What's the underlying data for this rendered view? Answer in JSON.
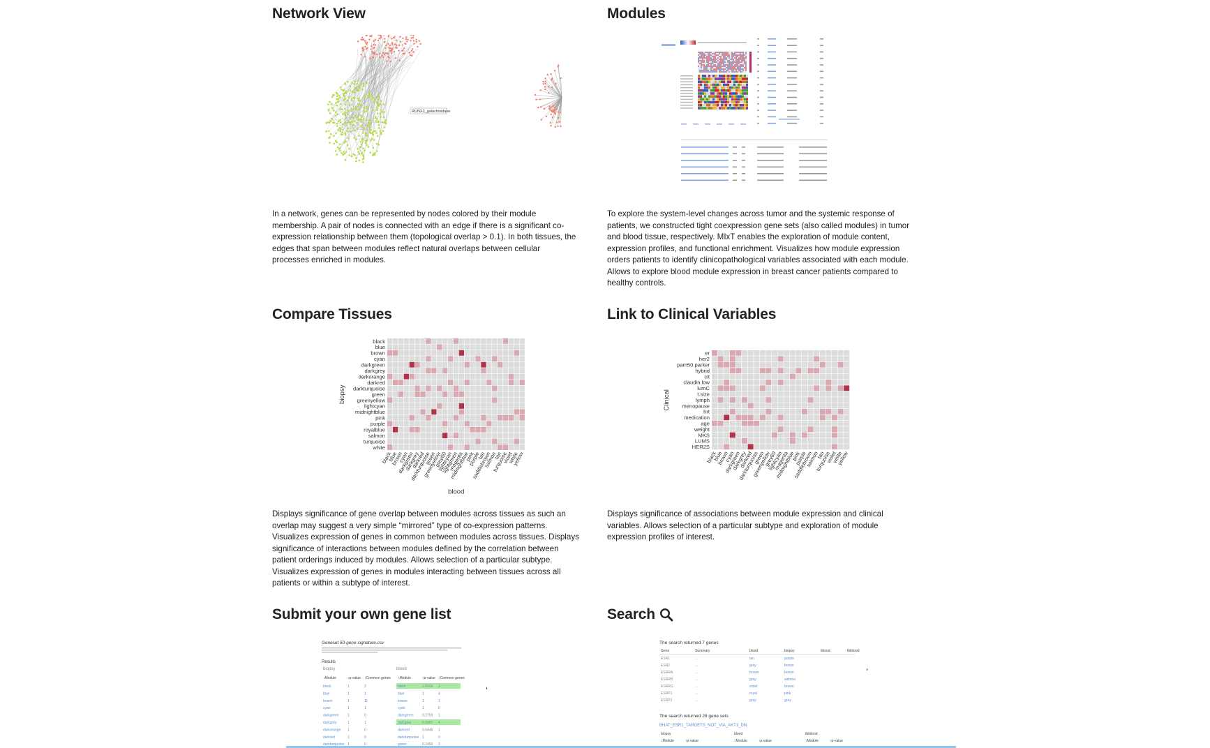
{
  "sections": {
    "network_view": {
      "title": "Network View",
      "node_label": "RUNX2_galactosidase",
      "description": "In a network, genes can be represented by nodes colored by their module membership. A pair of nodes is connected with an edge if there is a significant co-expression relationship between them (topological overlap > 0.1). In both tissues, the edges that span between modules reflect natural overlaps between cellular processes enriched in modules."
    },
    "modules": {
      "title": "Modules",
      "description": "To explore the system-level changes across tumor and the systemic response of patients, we constructed tight coexpression gene sets (also called modules) in tumor and blood tissue, respectively. MIxT enables the exploration of module content, expression profiles, and functional enrichment. Visualizes how module expression orders patients to identify clinicopathological variables associated with each module. Allows to explore blood module expression in breast cancer patients compared to healthy controls."
    },
    "compare_tissues": {
      "title": "Compare Tissues",
      "ylabel": "biopsy",
      "xlabel": "blood",
      "rows": [
        "black",
        "blue",
        "brown",
        "cyan",
        "darkgreen",
        "darkgrey",
        "darkorange",
        "darkred",
        "darkturquoise",
        "green",
        "greenyellow",
        "lightcyan",
        "midnightblue",
        "pink",
        "purple",
        "royalblue",
        "salmon",
        "turquoise",
        "white"
      ],
      "cols": [
        "black",
        "blue",
        "brown",
        "cyan",
        "darkgreen",
        "darkgrey",
        "darkred",
        "darkturquoise",
        "green",
        "greenyellow",
        "grey60",
        "lightcyan",
        "lightgreen",
        "magenta",
        "midnightblue",
        "pink",
        "purple",
        "tan",
        "saddlebrown",
        "salmon",
        "tan",
        "turquoise",
        "violet",
        "white",
        "yellow"
      ],
      "description": "Displays significance of gene overlap between modules across tissues as such an overlap may suggest a very simple “mirrored” type of co-expression patterns. Visualizes expression of genes in common between modules across tissues. Displays significance of interactions between modules defined by the correlation between patient orderings induced by modules. Allows selection of a particular subtype. Visualizes expression of genes in modules interacting between tissues across all patients or within a subtype of interest."
    },
    "clinical": {
      "title": "Link to Clinical Variables",
      "ylabel": "Clinical",
      "rows": [
        "er",
        "her2",
        "pam50.parker",
        "hybrid",
        "cit",
        "claudin.low",
        "lumC",
        "t.size",
        "lymph",
        "menopause",
        "hrt",
        "medication",
        "age",
        "weight",
        "MKS",
        "LUMS",
        "HER2S"
      ],
      "cols": [
        "black",
        "blue",
        "brown",
        "cyan",
        "darkgreen",
        "darkgrey",
        "darkred",
        "darkturquoise",
        "green",
        "greenyellow",
        "grey60",
        "lightcyan",
        "magenta",
        "midnightblue",
        "pink",
        "purple",
        "saddlebrown",
        "salmon",
        "tan",
        "turquoise",
        "violet",
        "white",
        "yellow"
      ],
      "description": "Displays significance of associations between module expression and clinical variables. Allows selection of a particular subtype and exploration of module expression profiles of interest."
    },
    "submit": {
      "title": "Submit your own gene list",
      "geneset_label": "Geneset",
      "geneset_file": "50-gene-signature.csv",
      "results_label": "Results",
      "biopsy_label": "biopsy",
      "blood_label": "blood",
      "headers": [
        "↕Module",
        "↕p-value",
        "↕Common genes"
      ],
      "rows": [
        {
          "b_mod": "black",
          "b_p": "1",
          "b_c": "2",
          "bl_mod": "black",
          "bl_p": "0.0004",
          "bl_c": "3",
          "hl": true
        },
        {
          "b_mod": "blue",
          "b_p": "1",
          "b_c": "1",
          "bl_mod": "blue",
          "bl_p": "1",
          "bl_c": "4",
          "hl": false
        },
        {
          "b_mod": "brown",
          "b_p": "1",
          "b_c": "11",
          "bl_mod": "brown",
          "bl_p": "1",
          "bl_c": "1",
          "hl": false
        },
        {
          "b_mod": "cyan",
          "b_p": "1",
          "b_c": "1",
          "bl_mod": "cyan",
          "bl_p": "1",
          "bl_c": "0",
          "hl": false
        },
        {
          "b_mod": "darkgreen",
          "b_p": "1",
          "b_c": "0",
          "bl_mod": "darkgreen",
          "bl_p": "0.2759",
          "bl_c": "1",
          "hl": false
        },
        {
          "b_mod": "darkgrey",
          "b_p": "1",
          "b_c": "1",
          "bl_mod": "darkgrey",
          "bl_p": "0.0007",
          "bl_c": "4",
          "hl": true
        },
        {
          "b_mod": "darkorange",
          "b_p": "1",
          "b_c": "0",
          "bl_mod": "darkred",
          "bl_p": "0.6446",
          "bl_c": "1",
          "hl": false
        },
        {
          "b_mod": "darkred",
          "b_p": "1",
          "b_c": "0",
          "bl_mod": "darkturquoise",
          "bl_p": "1",
          "bl_c": "0",
          "hl": false
        },
        {
          "b_mod": "darkturquoise",
          "b_p": "1",
          "b_c": "0",
          "bl_mod": "green",
          "bl_p": "0.2450",
          "bl_c": "2",
          "hl": false
        }
      ]
    },
    "search": {
      "title": "Search",
      "returned_genes": "The search returned 7 genes",
      "headers": [
        "Gene",
        "Summary",
        "blood",
        "biopsy",
        "tblood",
        "tbiblood"
      ],
      "rows": [
        {
          "gene": "ESR1",
          "summary": "...",
          "blood": "tan",
          "biopsy": "purple"
        },
        {
          "gene": "ESR2",
          "summary": "...",
          "blood": "grey",
          "biopsy": "brown"
        },
        {
          "gene": "ESRRA",
          "summary": "...",
          "blood": "brown",
          "biopsy": "brown"
        },
        {
          "gene": "ESRRB",
          "summary": "...",
          "blood": "grey",
          "biopsy": "salmon"
        },
        {
          "gene": "ESRRG",
          "summary": "...",
          "blood": "violet",
          "biopsy": "brown"
        },
        {
          "gene": "ESRP1",
          "summary": "...",
          "blood": "royal",
          "biopsy": "pink"
        },
        {
          "gene": "ESRP2",
          "summary": "...",
          "blood": "grey",
          "biopsy": "grey"
        }
      ],
      "returned_sets": "The search returned 28 gene sets",
      "set_link": "BHAT_ESR1_TARGETS_NOT_VIA_AKT1_DN",
      "set_cols": [
        "biopsy",
        "blood",
        "tbiblood"
      ],
      "set_headers": [
        "↕Module",
        "↕p-value",
        "↕Module",
        "↕p-value",
        "↕Module",
        "↕p-value"
      ]
    }
  },
  "icons": {
    "search": "search-icon"
  },
  "colors": {
    "heat_low": "#dcdcdc",
    "heat_mid": "#d9a9b1",
    "heat_high": "#b0334a",
    "highlight": "#a8eaa0",
    "link": "#5b8fd6",
    "green_node": "#b6dc48",
    "red_node": "#f08070"
  }
}
